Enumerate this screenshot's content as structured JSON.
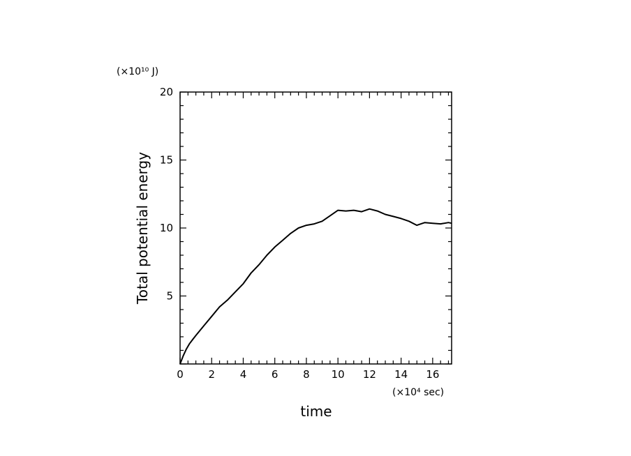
{
  "chart_data": {
    "type": "line",
    "title": "",
    "xlabel": "time",
    "ylabel": "Total potential energy",
    "x_unit": "(×10⁴ sec)",
    "y_unit": "(×10¹⁰ J)",
    "xlim": [
      0,
      17.2
    ],
    "ylim": [
      0,
      20
    ],
    "xticks": [
      0,
      2,
      4,
      6,
      8,
      10,
      12,
      14,
      16
    ],
    "yticks": [
      5,
      10,
      15,
      20
    ],
    "grid": false,
    "series": [
      {
        "x": [
          0,
          0.2,
          0.4,
          0.6,
          0.8,
          1.0,
          1.5,
          2.0,
          2.5,
          3.0,
          3.5,
          4.0,
          4.5,
          5.0,
          5.5,
          6.0,
          6.5,
          7.0,
          7.5,
          8.0,
          8.5,
          9.0,
          9.5,
          10.0,
          10.5,
          11.0,
          11.5,
          12.0,
          12.5,
          13.0,
          13.5,
          14.0,
          14.5,
          15.0,
          15.5,
          16.0,
          16.5,
          17.0,
          17.2
        ],
        "y": [
          0.0,
          0.6,
          1.1,
          1.5,
          1.8,
          2.1,
          2.8,
          3.5,
          4.2,
          4.7,
          5.3,
          5.9,
          6.7,
          7.3,
          8.0,
          8.6,
          9.1,
          9.6,
          10.0,
          10.2,
          10.3,
          10.5,
          10.9,
          11.3,
          11.25,
          11.3,
          11.2,
          11.4,
          11.25,
          11.0,
          10.85,
          10.7,
          10.5,
          10.2,
          10.4,
          10.35,
          10.3,
          10.4,
          10.35
        ]
      }
    ]
  }
}
